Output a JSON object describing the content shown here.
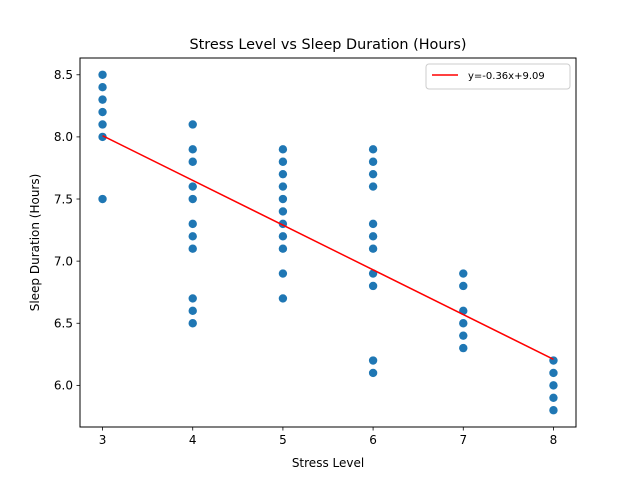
{
  "chart_data": {
    "type": "scatter",
    "title": "Stress Level vs Sleep Duration (Hours)",
    "xlabel": "Stress Level",
    "ylabel": "Sleep Duration (Hours)",
    "xlim": [
      2.75,
      8.25
    ],
    "ylim": [
      5.665,
      8.635
    ],
    "x_ticks": [
      3,
      4,
      5,
      6,
      7,
      8
    ],
    "y_ticks": [
      6.0,
      6.5,
      7.0,
      7.5,
      8.0,
      8.5
    ],
    "grid": false,
    "legend_position": "top-right",
    "colors": {
      "points": "#1f77b4",
      "fit_line": "#ff0000"
    },
    "series": [
      {
        "kind": "scatter",
        "points": [
          [
            3,
            8.5
          ],
          [
            3,
            8.4
          ],
          [
            3,
            8.3
          ],
          [
            3,
            8.2
          ],
          [
            3,
            8.1
          ],
          [
            3,
            8.0
          ],
          [
            3,
            7.5
          ],
          [
            4,
            8.1
          ],
          [
            4,
            7.9
          ],
          [
            4,
            7.8
          ],
          [
            4,
            7.6
          ],
          [
            4,
            7.5
          ],
          [
            4,
            7.3
          ],
          [
            4,
            7.2
          ],
          [
            4,
            7.1
          ],
          [
            4,
            6.7
          ],
          [
            4,
            6.6
          ],
          [
            4,
            6.5
          ],
          [
            5,
            7.9
          ],
          [
            5,
            7.8
          ],
          [
            5,
            7.7
          ],
          [
            5,
            7.6
          ],
          [
            5,
            7.5
          ],
          [
            5,
            7.4
          ],
          [
            5,
            7.3
          ],
          [
            5,
            7.2
          ],
          [
            5,
            7.1
          ],
          [
            5,
            6.9
          ],
          [
            5,
            6.7
          ],
          [
            6,
            7.9
          ],
          [
            6,
            7.8
          ],
          [
            6,
            7.7
          ],
          [
            6,
            7.6
          ],
          [
            6,
            7.3
          ],
          [
            6,
            7.2
          ],
          [
            6,
            7.1
          ],
          [
            6,
            6.9
          ],
          [
            6,
            6.8
          ],
          [
            6,
            6.2
          ],
          [
            6,
            6.1
          ],
          [
            7,
            6.9
          ],
          [
            7,
            6.8
          ],
          [
            7,
            6.6
          ],
          [
            7,
            6.5
          ],
          [
            7,
            6.4
          ],
          [
            7,
            6.3
          ],
          [
            8,
            6.2
          ],
          [
            8,
            6.1
          ],
          [
            8,
            6.0
          ],
          [
            8,
            5.9
          ],
          [
            8,
            5.8
          ]
        ]
      },
      {
        "kind": "line",
        "name": "y=-0.36x+9.09",
        "slope": -0.36,
        "intercept": 9.09,
        "x_range": [
          3,
          8
        ]
      }
    ]
  }
}
